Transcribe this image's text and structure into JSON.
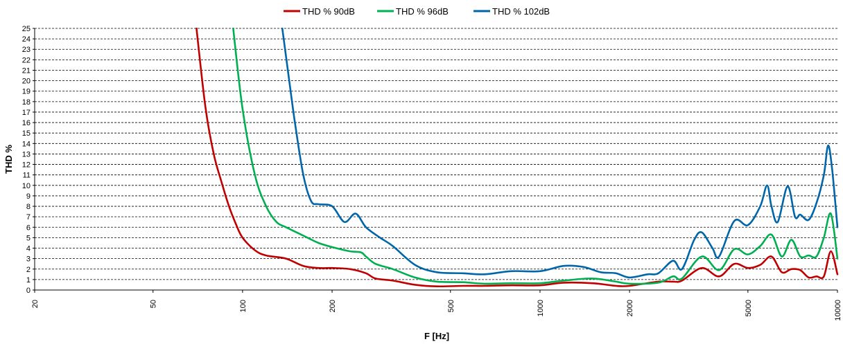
{
  "chart_data": {
    "type": "line",
    "xlabel": "F [Hz]",
    "ylabel": "THD %",
    "x_scale": "log",
    "xlim": [
      20,
      10000
    ],
    "ylim": [
      0,
      25
    ],
    "x_ticks": [
      20,
      50,
      100,
      200,
      500,
      1000,
      2000,
      5000,
      10000
    ],
    "x_tick_labels": [
      "20",
      "50",
      "100",
      "200",
      "500",
      "1000",
      "2000",
      "5000",
      "10000"
    ],
    "y_ticks": [
      0,
      1,
      2,
      3,
      4,
      5,
      6,
      7,
      8,
      9,
      10,
      11,
      12,
      13,
      14,
      15,
      16,
      17,
      18,
      19,
      20,
      21,
      22,
      23,
      24,
      25
    ],
    "y_tick_labels": [
      "0",
      "1",
      "2",
      "3",
      "4",
      "5",
      "6",
      "7",
      "8",
      "9",
      "10",
      "11",
      "12",
      "13",
      "14",
      "15",
      "16",
      "17",
      "18",
      "19",
      "20",
      "21",
      "22",
      "23",
      "24",
      "25"
    ],
    "grid": "horizontal dashed",
    "legend_position": "top-center",
    "series": [
      {
        "name": "THD % 90dB",
        "color": "#c00000",
        "x": [
          70,
          75,
          80,
          85,
          90,
          95,
          100,
          110,
          120,
          140,
          160,
          180,
          200,
          230,
          260,
          280,
          320,
          380,
          450,
          550,
          650,
          800,
          1000,
          1200,
          1500,
          1800,
          2000,
          2500,
          2800,
          3000,
          3500,
          4000,
          4500,
          5000,
          5500,
          6000,
          6500,
          7000,
          7500,
          8000,
          8500,
          9000,
          9500,
          10000
        ],
        "y": [
          25,
          17.5,
          13,
          10.3,
          8,
          6.3,
          5,
          3.8,
          3.3,
          3,
          2.3,
          2.1,
          2.1,
          2.0,
          1.6,
          1.1,
          0.9,
          0.5,
          0.35,
          0.4,
          0.4,
          0.45,
          0.45,
          0.7,
          0.65,
          0.4,
          0.4,
          0.8,
          0.8,
          0.9,
          2.1,
          1.3,
          2.5,
          2.1,
          2.4,
          3.2,
          1.7,
          2.0,
          1.9,
          1.2,
          1.3,
          1.3,
          3.7,
          1.5
        ]
      },
      {
        "name": "THD % 96dB",
        "color": "#00b050",
        "x": [
          93,
          100,
          110,
          120,
          130,
          140,
          160,
          180,
          200,
          230,
          250,
          260,
          280,
          320,
          380,
          450,
          550,
          650,
          800,
          1000,
          1200,
          1500,
          1800,
          2000,
          2500,
          2800,
          3000,
          3500,
          4000,
          4500,
          5000,
          5500,
          6000,
          6500,
          7000,
          7500,
          8000,
          8500,
          9000,
          9500,
          10000
        ],
        "y": [
          25,
          17.3,
          11,
          8,
          6.5,
          6,
          5.2,
          4.5,
          4.1,
          3.7,
          3.6,
          3.2,
          2.5,
          2.0,
          1.2,
          0.8,
          0.75,
          0.6,
          0.65,
          0.65,
          0.9,
          1.1,
          0.8,
          0.6,
          0.7,
          1.3,
          1.1,
          3.2,
          1.9,
          3.9,
          3.4,
          4.2,
          5.3,
          3.2,
          4.8,
          3.2,
          3.3,
          3.2,
          5.0,
          7.3,
          3.0
        ]
      },
      {
        "name": "THD % 102dB",
        "color": "#0066aa",
        "x": [
          136,
          142,
          150,
          160,
          170,
          180,
          200,
          220,
          240,
          260,
          290,
          320,
          380,
          450,
          550,
          650,
          800,
          1000,
          1200,
          1400,
          1600,
          1800,
          2000,
          2300,
          2500,
          2800,
          3000,
          3300,
          3500,
          3800,
          4000,
          4500,
          5000,
          5500,
          5800,
          6000,
          6300,
          6800,
          7200,
          7500,
          8000,
          8500,
          9000,
          9300,
          9600,
          10000
        ],
        "y": [
          25,
          21,
          16,
          11,
          8.5,
          8.2,
          8.0,
          6.5,
          7.3,
          6.0,
          5.0,
          4.2,
          2.4,
          1.7,
          1.6,
          1.5,
          1.8,
          1.8,
          2.3,
          2.2,
          1.7,
          1.6,
          1.2,
          1.5,
          1.6,
          2.8,
          2.0,
          4.8,
          5.5,
          4.0,
          3.2,
          6.6,
          6.2,
          8.0,
          10.0,
          8.0,
          6.5,
          9.9,
          7.0,
          7.2,
          6.7,
          8.3,
          11.0,
          13.8,
          11.5,
          6.0
        ]
      }
    ]
  }
}
